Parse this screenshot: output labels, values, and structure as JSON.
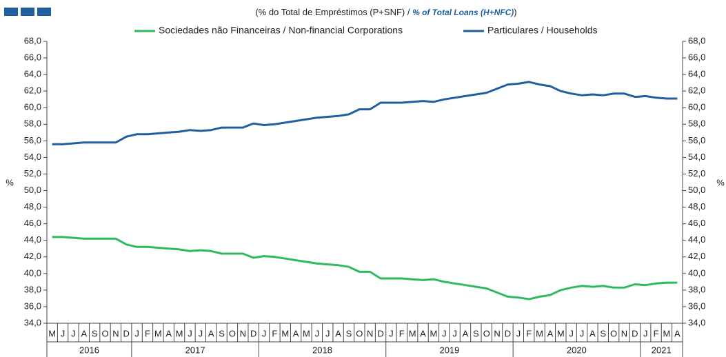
{
  "chart_data": {
    "type": "line",
    "title_parts": [
      "(% do Total de Empréstimos  (P+SNF)  / ",
      "% of Total Loans (H+NFC)",
      ")"
    ],
    "ylabel": "%",
    "y2label": "%",
    "groups": [
      {
        "label": "2016",
        "categories": [
          "M",
          "J",
          "J",
          "A",
          "S",
          "O",
          "N",
          "D"
        ]
      },
      {
        "label": "2017",
        "categories": [
          "J",
          "F",
          "M",
          "A",
          "M",
          "J",
          "J",
          "A",
          "S",
          "O",
          "N",
          "D"
        ]
      },
      {
        "label": "2018",
        "categories": [
          "J",
          "F",
          "M",
          "A",
          "M",
          "J",
          "J",
          "A",
          "S",
          "O",
          "N",
          "D"
        ]
      },
      {
        "label": "2019",
        "categories": [
          "J",
          "F",
          "M",
          "A",
          "M",
          "J",
          "J",
          "A",
          "S",
          "O",
          "N",
          "D"
        ]
      },
      {
        "label": "2020",
        "categories": [
          "J",
          "F",
          "M",
          "A",
          "M",
          "J",
          "J",
          "A",
          "S",
          "O",
          "N",
          "D"
        ]
      },
      {
        "label": "2021",
        "categories": [
          "J",
          "F",
          "M",
          "A"
        ]
      }
    ],
    "series": [
      {
        "name": "Sociedades não Financeiras / Non-financial Corporations",
        "color": "#2dbb5d",
        "values": [
          44.4,
          44.4,
          44.3,
          44.2,
          44.2,
          44.2,
          44.2,
          43.5,
          43.2,
          43.2,
          43.1,
          43.0,
          42.9,
          42.7,
          42.8,
          42.7,
          42.4,
          42.4,
          42.4,
          41.9,
          42.1,
          42.0,
          41.8,
          41.6,
          41.4,
          41.2,
          41.1,
          41.0,
          40.8,
          40.2,
          40.2,
          39.4,
          39.4,
          39.4,
          39.3,
          39.2,
          39.3,
          39.0,
          38.8,
          38.6,
          38.4,
          38.2,
          37.7,
          37.2,
          37.1,
          36.9,
          37.2,
          37.4,
          38.0,
          38.3,
          38.5,
          38.4,
          38.5,
          38.3,
          38.3,
          38.7,
          38.6,
          38.8,
          38.9,
          38.9
        ]
      },
      {
        "name": "Particulares / Households",
        "color": "#1f5fa0",
        "values": [
          55.6,
          55.6,
          55.7,
          55.8,
          55.8,
          55.8,
          55.8,
          56.5,
          56.8,
          56.8,
          56.9,
          57.0,
          57.1,
          57.3,
          57.2,
          57.3,
          57.6,
          57.6,
          57.6,
          58.1,
          57.9,
          58.0,
          58.2,
          58.4,
          58.6,
          58.8,
          58.9,
          59.0,
          59.2,
          59.8,
          59.8,
          60.6,
          60.6,
          60.6,
          60.7,
          60.8,
          60.7,
          61.0,
          61.2,
          61.4,
          61.6,
          61.8,
          62.3,
          62.8,
          62.9,
          63.1,
          62.8,
          62.6,
          62.0,
          61.7,
          61.5,
          61.6,
          61.5,
          61.7,
          61.7,
          61.3,
          61.4,
          61.2,
          61.1,
          61.1
        ]
      }
    ],
    "ylim": [
      34,
      68
    ],
    "yticks": [
      {
        "value": 34,
        "label": "34,0"
      },
      {
        "value": 36,
        "label": "36,0"
      },
      {
        "value": 38,
        "label": "38,0"
      },
      {
        "value": 40,
        "label": "40,0"
      },
      {
        "value": 42,
        "label": "42,0"
      },
      {
        "value": 44,
        "label": "44,0"
      },
      {
        "value": 46,
        "label": "46,0"
      },
      {
        "value": 48,
        "label": "48,0"
      },
      {
        "value": 50,
        "label": "50,0"
      },
      {
        "value": 52,
        "label": "52,0"
      },
      {
        "value": 54,
        "label": "54,0"
      },
      {
        "value": 56,
        "label": "56,0"
      },
      {
        "value": 58,
        "label": "58,0"
      },
      {
        "value": 60,
        "label": "60,0"
      },
      {
        "value": 62,
        "label": "62,0"
      },
      {
        "value": 64,
        "label": "64,0"
      },
      {
        "value": 66,
        "label": "66,0"
      },
      {
        "value": 68,
        "label": "68,0"
      }
    ],
    "y2lim": [
      34,
      68
    ],
    "y2ticks": [
      {
        "value": 34,
        "label": "34,0"
      },
      {
        "value": 36,
        "label": "36,0"
      },
      {
        "value": 38,
        "label": "38,0"
      },
      {
        "value": 40,
        "label": "40,0"
      },
      {
        "value": 42,
        "label": "42,0"
      },
      {
        "value": 44,
        "label": "44,0"
      },
      {
        "value": 46,
        "label": "46,0"
      },
      {
        "value": 48,
        "label": "48,0"
      },
      {
        "value": 50,
        "label": "50,0"
      },
      {
        "value": 52,
        "label": "52,0"
      },
      {
        "value": 54,
        "label": "54,0"
      },
      {
        "value": 56,
        "label": "56,0"
      },
      {
        "value": 58,
        "label": "58,0"
      },
      {
        "value": 60,
        "label": "60,0"
      },
      {
        "value": 62,
        "label": "62,0"
      },
      {
        "value": 64,
        "label": "64,0"
      },
      {
        "value": 66,
        "label": "66,0"
      },
      {
        "value": 68,
        "label": "68,0"
      }
    ],
    "grid": false
  }
}
